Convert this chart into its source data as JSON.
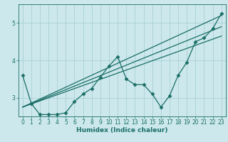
{
  "xlabel": "Humidex (Indice chaleur)",
  "bg_color": "#cce8ec",
  "grid_color": "#aad0d5",
  "line_color": "#1a6e66",
  "xlim": [
    -0.5,
    23.5
  ],
  "ylim": [
    2.5,
    5.5
  ],
  "yticks": [
    3,
    4,
    5
  ],
  "xticks": [
    0,
    1,
    2,
    3,
    4,
    5,
    6,
    7,
    8,
    9,
    10,
    11,
    12,
    13,
    14,
    15,
    16,
    17,
    18,
    19,
    20,
    21,
    22,
    23
  ],
  "series1_x": [
    0,
    1,
    2,
    3,
    4,
    5,
    6,
    7,
    8,
    9,
    10,
    11,
    12,
    13,
    14,
    15,
    16,
    17,
    18,
    19,
    20,
    21,
    22,
    23
  ],
  "series1_y": [
    3.6,
    2.85,
    2.55,
    2.55,
    2.55,
    2.6,
    2.9,
    3.1,
    3.25,
    3.55,
    3.85,
    4.1,
    3.5,
    3.35,
    3.35,
    3.1,
    2.75,
    3.05,
    3.6,
    3.95,
    4.5,
    4.6,
    4.85,
    5.25
  ],
  "series2_x": [
    0,
    23
  ],
  "series2_y": [
    2.75,
    5.2
  ],
  "series3_x": [
    0,
    23
  ],
  "series3_y": [
    2.75,
    4.65
  ],
  "series4_x": [
    0,
    23
  ],
  "series4_y": [
    2.75,
    4.9
  ]
}
